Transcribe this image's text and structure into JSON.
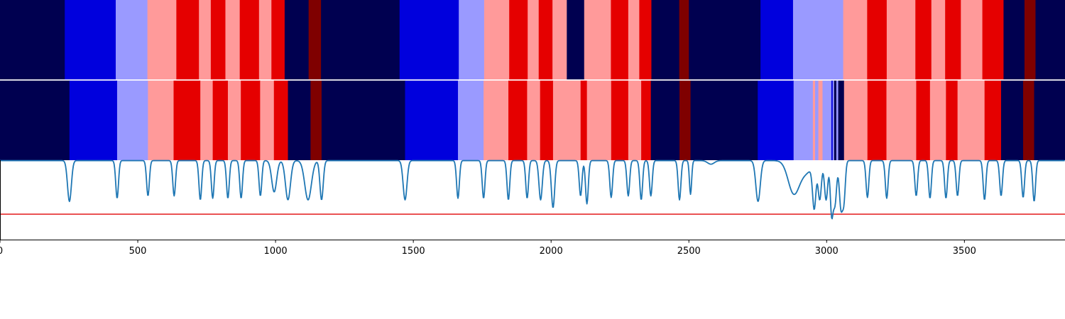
{
  "chart_data": {
    "type": "heatmap",
    "title": "",
    "xlabel": "",
    "ylabel": "",
    "xlim": [
      0,
      3865
    ],
    "x_ticks": [
      {
        "value": 0,
        "label": "0"
      },
      {
        "value": 500,
        "label": "500"
      },
      {
        "value": 1000,
        "label": "1000"
      },
      {
        "value": 1500,
        "label": "1500"
      },
      {
        "value": 2000,
        "label": "2000"
      },
      {
        "value": 2500,
        "label": "2500"
      },
      {
        "value": 3000,
        "label": "3000"
      },
      {
        "value": 3500,
        "label": "3500"
      }
    ],
    "state_colors": {
      "0": "#000050",
      "1": "#0000dd",
      "2": "#9a9aff",
      "3": "#ff9a9a",
      "4": "#e50000",
      "5": "#7f0000"
    },
    "tracks": [
      {
        "segments": [
          [
            0,
            235,
            0
          ],
          [
            235,
            420,
            1
          ],
          [
            420,
            535,
            2
          ],
          [
            535,
            640,
            3
          ],
          [
            640,
            722,
            4
          ],
          [
            722,
            765,
            3
          ],
          [
            765,
            818,
            4
          ],
          [
            818,
            870,
            3
          ],
          [
            870,
            940,
            4
          ],
          [
            940,
            985,
            3
          ],
          [
            985,
            1033,
            4
          ],
          [
            1033,
            1120,
            0
          ],
          [
            1120,
            1165,
            5
          ],
          [
            1165,
            1450,
            0
          ],
          [
            1450,
            1665,
            1
          ],
          [
            1665,
            1757,
            2
          ],
          [
            1757,
            1848,
            3
          ],
          [
            1848,
            1915,
            4
          ],
          [
            1915,
            1955,
            3
          ],
          [
            1955,
            2005,
            4
          ],
          [
            2005,
            2057,
            3
          ],
          [
            2057,
            2120,
            0
          ],
          [
            2120,
            2217,
            3
          ],
          [
            2217,
            2280,
            4
          ],
          [
            2280,
            2320,
            3
          ],
          [
            2320,
            2364,
            4
          ],
          [
            2364,
            2465,
            0
          ],
          [
            2465,
            2500,
            5
          ],
          [
            2500,
            2760,
            0
          ],
          [
            2760,
            2878,
            1
          ],
          [
            2878,
            3060,
            2
          ],
          [
            3060,
            3147,
            3
          ],
          [
            3147,
            3218,
            4
          ],
          [
            3218,
            3322,
            3
          ],
          [
            3322,
            3380,
            4
          ],
          [
            3380,
            3430,
            3
          ],
          [
            3430,
            3487,
            4
          ],
          [
            3487,
            3565,
            3
          ],
          [
            3565,
            3642,
            4
          ],
          [
            3642,
            3718,
            0
          ],
          [
            3718,
            3758,
            5
          ],
          [
            3758,
            3865,
            0
          ]
        ]
      },
      {
        "segments": [
          [
            0,
            252,
            0
          ],
          [
            252,
            425,
            1
          ],
          [
            425,
            537,
            2
          ],
          [
            537,
            630,
            3
          ],
          [
            630,
            727,
            4
          ],
          [
            727,
            772,
            3
          ],
          [
            772,
            827,
            4
          ],
          [
            827,
            874,
            3
          ],
          [
            874,
            944,
            4
          ],
          [
            944,
            994,
            3
          ],
          [
            994,
            1045,
            4
          ],
          [
            1045,
            1127,
            0
          ],
          [
            1127,
            1167,
            5
          ],
          [
            1167,
            1470,
            0
          ],
          [
            1470,
            1662,
            1
          ],
          [
            1662,
            1755,
            2
          ],
          [
            1755,
            1845,
            3
          ],
          [
            1845,
            1913,
            4
          ],
          [
            1913,
            1960,
            3
          ],
          [
            1960,
            2007,
            4
          ],
          [
            2007,
            2107,
            3
          ],
          [
            2107,
            2130,
            4
          ],
          [
            2130,
            2218,
            3
          ],
          [
            2218,
            2280,
            4
          ],
          [
            2280,
            2327,
            3
          ],
          [
            2327,
            2362,
            4
          ],
          [
            2362,
            2466,
            0
          ],
          [
            2466,
            2506,
            5
          ],
          [
            2506,
            2750,
            0
          ],
          [
            2750,
            2880,
            1
          ],
          [
            2880,
            2950,
            2
          ],
          [
            2950,
            2958,
            3
          ],
          [
            2958,
            2970,
            2
          ],
          [
            2970,
            2985,
            3
          ],
          [
            2985,
            3017,
            2
          ],
          [
            3017,
            3022,
            1
          ],
          [
            3022,
            3027,
            2
          ],
          [
            3027,
            3035,
            0
          ],
          [
            3035,
            3042,
            2
          ],
          [
            3042,
            3063,
            0
          ],
          [
            3063,
            3148,
            3
          ],
          [
            3148,
            3217,
            4
          ],
          [
            3217,
            3325,
            3
          ],
          [
            3325,
            3375,
            4
          ],
          [
            3375,
            3433,
            3
          ],
          [
            3433,
            3475,
            4
          ],
          [
            3475,
            3573,
            3
          ],
          [
            3573,
            3633,
            4
          ],
          [
            3633,
            3713,
            0
          ],
          [
            3713,
            3753,
            5
          ],
          [
            3753,
            3865,
            0
          ]
        ]
      }
    ],
    "line_series": {
      "color": "#1f77b4",
      "ylim": [
        0,
        1
      ],
      "threshold": 0.32,
      "threshold_color": "#e31a1c",
      "baseline": 0.995,
      "dips": [
        [
          252,
          0.48,
          7
        ],
        [
          425,
          0.52,
          5
        ],
        [
          537,
          0.55,
          5
        ],
        [
          632,
          0.55,
          5
        ],
        [
          727,
          0.5,
          5
        ],
        [
          772,
          0.52,
          5
        ],
        [
          827,
          0.52,
          5
        ],
        [
          875,
          0.52,
          5
        ],
        [
          945,
          0.55,
          5
        ],
        [
          995,
          0.6,
          9
        ],
        [
          1045,
          0.5,
          9
        ],
        [
          1118,
          0.5,
          12
        ],
        [
          1167,
          0.5,
          6
        ],
        [
          1470,
          0.5,
          7
        ],
        [
          1662,
          0.52,
          5
        ],
        [
          1755,
          0.52,
          5
        ],
        [
          1845,
          0.5,
          5
        ],
        [
          1913,
          0.52,
          5
        ],
        [
          1962,
          0.5,
          6
        ],
        [
          2007,
          0.4,
          6
        ],
        [
          2107,
          0.55,
          5
        ],
        [
          2130,
          0.45,
          5
        ],
        [
          2218,
          0.53,
          5
        ],
        [
          2280,
          0.55,
          5
        ],
        [
          2327,
          0.5,
          5
        ],
        [
          2362,
          0.55,
          5
        ],
        [
          2466,
          0.5,
          5
        ],
        [
          2506,
          0.57,
          4
        ],
        [
          2580,
          0.95,
          12
        ],
        [
          2751,
          0.48,
          8
        ],
        [
          2880,
          0.6,
          20
        ],
        [
          2925,
          0.85,
          25
        ],
        [
          2955,
          0.45,
          6
        ],
        [
          2975,
          0.52,
          6
        ],
        [
          2998,
          0.5,
          6
        ],
        [
          3018,
          0.35,
          5
        ],
        [
          3030,
          0.45,
          6
        ],
        [
          3052,
          0.4,
          6
        ],
        [
          3063,
          0.55,
          5
        ],
        [
          3148,
          0.53,
          5
        ],
        [
          3218,
          0.52,
          5
        ],
        [
          3325,
          0.55,
          5
        ],
        [
          3375,
          0.52,
          5
        ],
        [
          3433,
          0.52,
          5
        ],
        [
          3475,
          0.55,
          5
        ],
        [
          3573,
          0.5,
          5
        ],
        [
          3633,
          0.55,
          5
        ],
        [
          3713,
          0.53,
          5
        ],
        [
          3753,
          0.48,
          5
        ]
      ]
    },
    "grid": false,
    "legend": "none"
  }
}
